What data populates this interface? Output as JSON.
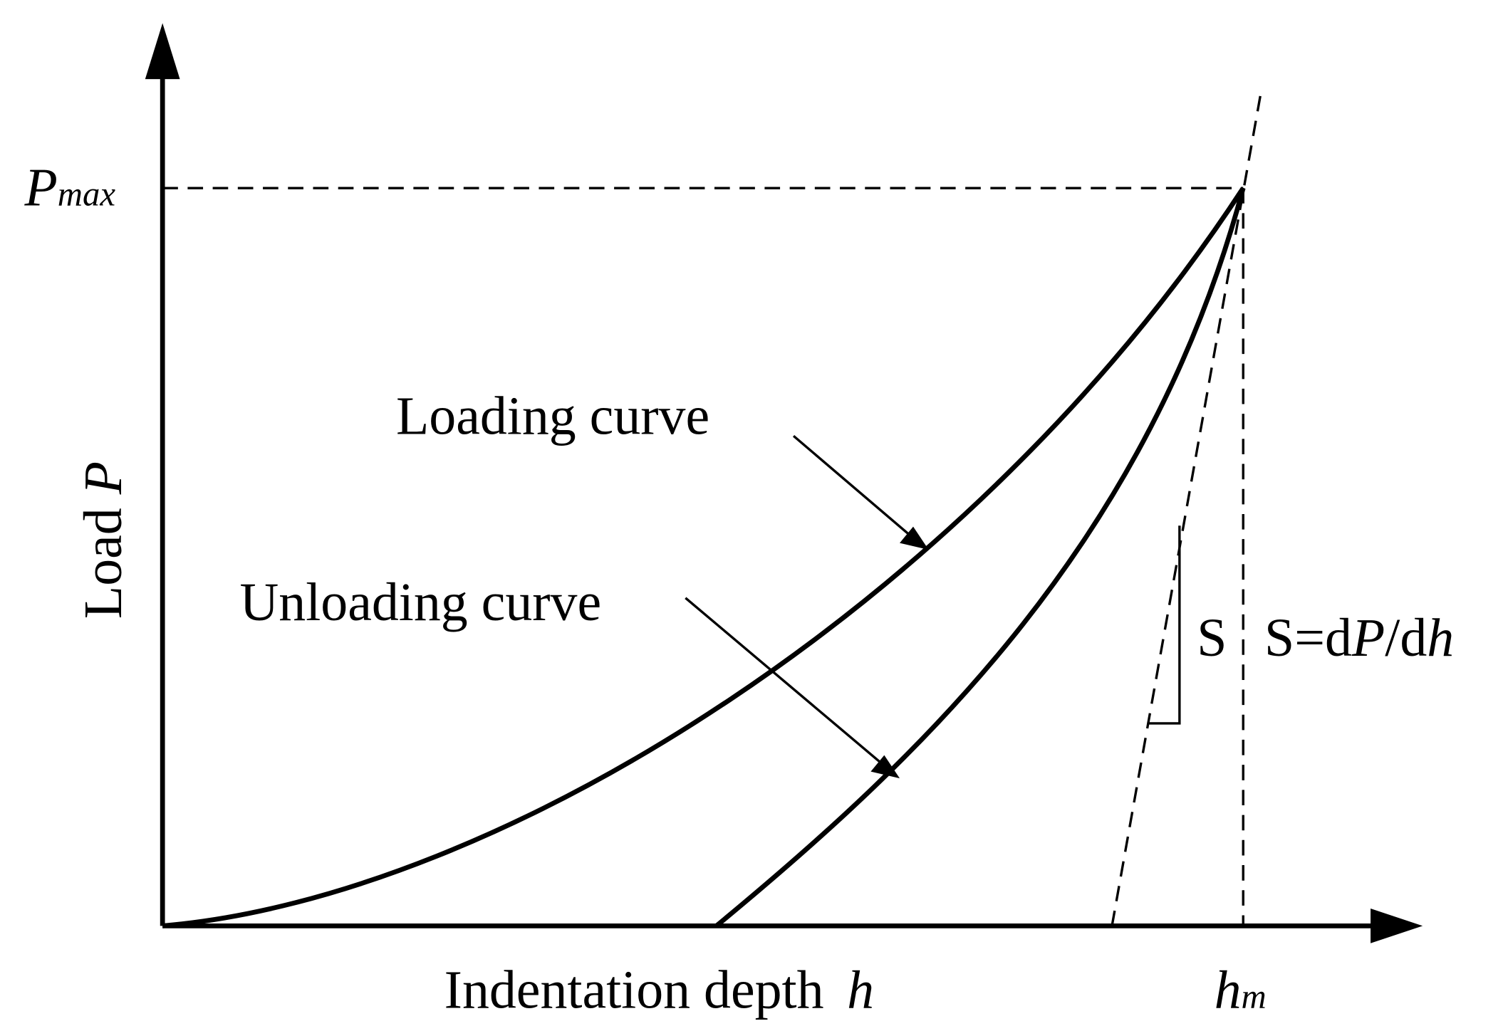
{
  "y_axis": {
    "label": "Load",
    "variable": "P",
    "max_label": {
      "symbol": "P",
      "subscript": "max"
    }
  },
  "x_axis": {
    "label": "Indentation depth",
    "variable": "h",
    "max_label": {
      "symbol": "h",
      "subscript": "m"
    }
  },
  "curves": [
    {
      "label": "Loading curve"
    },
    {
      "label": "Unloading curve"
    }
  ],
  "stiffness": {
    "symbol": "S",
    "formula": {
      "lhs": "S=d",
      "p": "P",
      "slash": "/d",
      "h": "h"
    }
  }
}
